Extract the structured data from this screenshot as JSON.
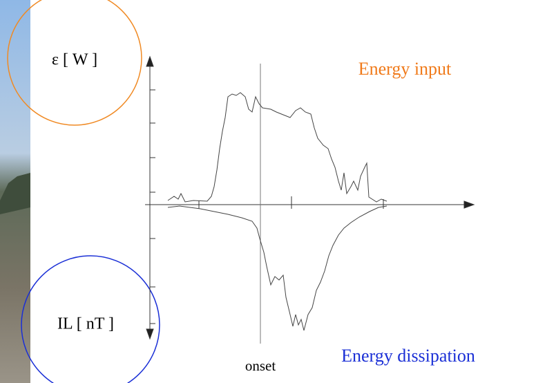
{
  "y_label_top": "ε [ W ]",
  "y_label_bottom": "IL [ nT ]",
  "annotation_top": "Energy input",
  "annotation_bottom": "Energy dissipation",
  "x_label": "onset"
}
